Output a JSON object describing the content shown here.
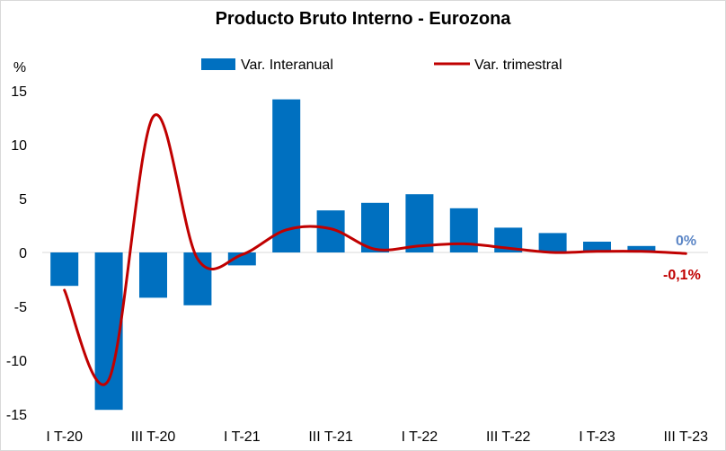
{
  "chart_data": {
    "type": "bar",
    "title": "Producto Bruto Interno - Eurozona",
    "xlabel": "",
    "ylabel": "%",
    "ylim": [
      -15,
      15
    ],
    "yticks": [
      15,
      10,
      5,
      0,
      -5,
      -10,
      -15
    ],
    "grid": false,
    "legend_position": "top",
    "categories": [
      "I T-20",
      "",
      "III T-20",
      "",
      "I T-21",
      "",
      "III T-21",
      "",
      "I T-22",
      "",
      "III T-22",
      "",
      "I T-23",
      "",
      "III T-23"
    ],
    "series": [
      {
        "name": "Var. Interanual",
        "type": "bar",
        "color": "#0070C0",
        "values": [
          -3.1,
          -14.6,
          -4.2,
          -4.9,
          -1.2,
          14.2,
          3.9,
          4.6,
          5.4,
          4.1,
          2.3,
          1.8,
          1.0,
          0.6,
          0.0
        ]
      },
      {
        "name": "Var. trimestral",
        "type": "line",
        "color": "#C00000",
        "values": [
          -3.5,
          -11.8,
          12.6,
          -0.6,
          -0.2,
          2.1,
          2.2,
          0.3,
          0.6,
          0.8,
          0.4,
          0.0,
          0.1,
          0.1,
          -0.1
        ]
      }
    ],
    "annotations": [
      {
        "text": "0%",
        "series": "Var. Interanual",
        "color": "#5C86C6"
      },
      {
        "text": "-0,1%",
        "series": "Var. trimestral",
        "color": "#C00000"
      }
    ]
  }
}
